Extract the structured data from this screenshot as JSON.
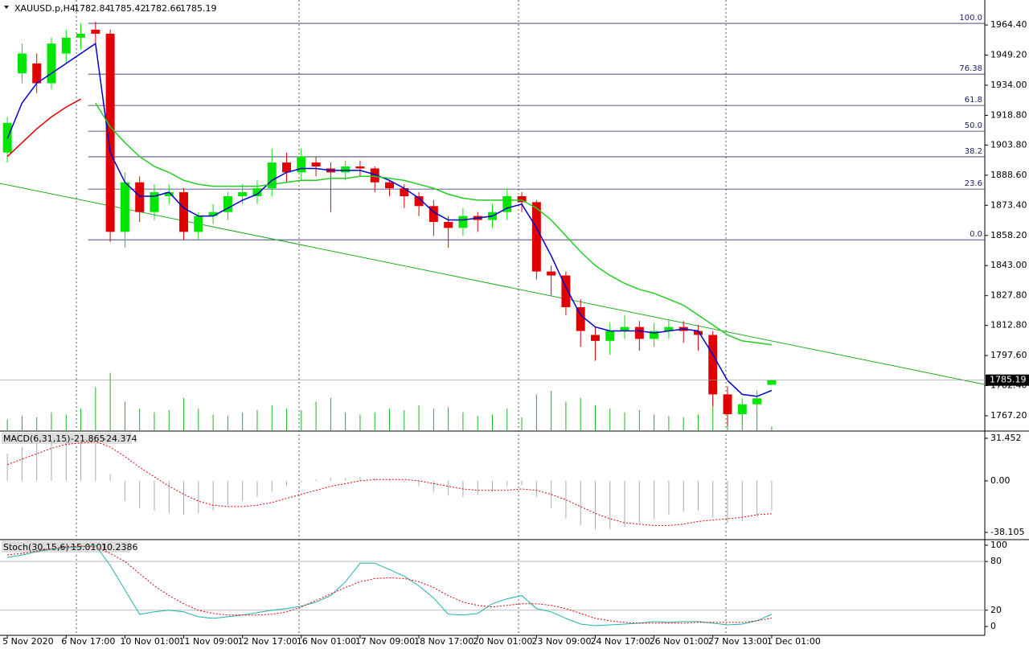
{
  "chart_data": {
    "type": "candlestick",
    "symbol": "XAUUSD.p,H4",
    "xlim": [
      -0.5,
      66.5
    ],
    "xticks": [
      {
        "value": 0,
        "label": "5 Nov 2020"
      },
      {
        "value": 4,
        "label": "6 Nov 17:00"
      },
      {
        "value": 8,
        "label": "10 Nov 01:00"
      },
      {
        "value": 12,
        "label": "11 Nov 09:00"
      },
      {
        "value": 16,
        "label": "12 Nov 17:00"
      },
      {
        "value": 20,
        "label": "16 Nov 01:00"
      },
      {
        "value": 24,
        "label": "17 Nov 09:00"
      },
      {
        "value": 28,
        "label": "18 Nov 17:00"
      },
      {
        "value": 32,
        "label": "20 Nov 01:00"
      },
      {
        "value": 36,
        "label": "23 Nov 09:00"
      },
      {
        "value": 40,
        "label": "24 Nov 17:00"
      },
      {
        "value": 44,
        "label": "26 Nov 01:00"
      },
      {
        "value": 48,
        "label": "27 Nov 13:00"
      },
      {
        "value": 52,
        "label": "1 Dec 01:00"
      }
    ],
    "ylim": [
      1759.9,
      1977.0
    ],
    "yticks": [
      {
        "value": 1964.4,
        "label": "1964.40"
      },
      {
        "value": 1949.2,
        "label": "1949.20"
      },
      {
        "value": 1934.0,
        "label": "1934.00"
      },
      {
        "value": 1918.8,
        "label": "1918.80"
      },
      {
        "value": 1903.8,
        "label": "1903.80"
      },
      {
        "value": 1888.6,
        "label": "1888.60"
      },
      {
        "value": 1873.4,
        "label": "1873.40"
      },
      {
        "value": 1858.2,
        "label": "1858.20"
      },
      {
        "value": 1843.0,
        "label": "1843.00"
      },
      {
        "value": 1827.8,
        "label": "1827.80"
      },
      {
        "value": 1812.8,
        "label": "1812.80"
      },
      {
        "value": 1797.6,
        "label": "1797.60"
      },
      {
        "value": 1782.4,
        "label": "1782.40"
      },
      {
        "value": 1767.2,
        "label": "1767.20"
      }
    ],
    "up_color": "#00e600",
    "down_color": "#e00000",
    "open": [
      1900,
      1940,
      1945,
      1935,
      1950,
      1958,
      1962,
      1960,
      1860,
      1885,
      1870,
      1878,
      1880,
      1860,
      1868,
      1870,
      1878,
      1878,
      1882,
      1895,
      1890,
      1895,
      1892,
      1890,
      1893,
      1892,
      1885,
      1882,
      1878,
      1873,
      1865,
      1862,
      1868,
      1866,
      1870,
      1878,
      1875,
      1840,
      1838,
      1822,
      1808,
      1805,
      1810,
      1812,
      1806,
      1810,
      1812,
      1810,
      1808,
      1778,
      1768,
      1773,
      1782.84
    ],
    "high": [
      1918,
      1955,
      1950,
      1958,
      1962,
      1965,
      1966,
      1962,
      1890,
      1888,
      1884,
      1884,
      1882,
      1870,
      1874,
      1880,
      1884,
      1886,
      1902,
      1900,
      1902,
      1898,
      1895,
      1896,
      1896,
      1893,
      1886,
      1884,
      1880,
      1876,
      1868,
      1872,
      1870,
      1874,
      1882,
      1880,
      1876,
      1843,
      1840,
      1826,
      1812,
      1814,
      1818,
      1815,
      1814,
      1816,
      1815,
      1813,
      1810,
      1782,
      1776,
      1780,
      1785.42
    ],
    "low": [
      1895,
      1935,
      1930,
      1932,
      1945,
      1952,
      1955,
      1855,
      1852,
      1865,
      1866,
      1874,
      1856,
      1856,
      1864,
      1866,
      1874,
      1874,
      1878,
      1885,
      1886,
      1888,
      1870,
      1886,
      1888,
      1880,
      1878,
      1872,
      1868,
      1858,
      1852,
      1858,
      1860,
      1862,
      1866,
      1870,
      1836,
      1828,
      1818,
      1802,
      1795,
      1798,
      1806,
      1800,
      1802,
      1806,
      1804,
      1800,
      1772,
      1762,
      1764,
      1766,
      1782.66
    ],
    "close": [
      1915,
      1950,
      1935,
      1955,
      1958,
      1960,
      1960,
      1860,
      1885,
      1870,
      1880,
      1880,
      1860,
      1868,
      1870,
      1878,
      1880,
      1882,
      1895,
      1890,
      1898,
      1893,
      1890,
      1893,
      1892,
      1885,
      1882,
      1878,
      1873,
      1865,
      1862,
      1868,
      1866,
      1870,
      1878,
      1875,
      1840,
      1838,
      1822,
      1810,
      1805,
      1810,
      1812,
      1806,
      1810,
      1812,
      1810,
      1808,
      1778,
      1768,
      1773,
      1776,
      1785.19
    ],
    "volume_ylim": [
      0,
      600
    ],
    "volume": [
      15,
      20,
      18,
      25,
      22,
      30,
      60,
      80,
      40,
      30,
      25,
      28,
      45,
      30,
      22,
      20,
      25,
      28,
      35,
      30,
      28,
      40,
      45,
      25,
      22,
      25,
      30,
      28,
      35,
      30,
      32,
      25,
      20,
      22,
      30,
      18,
      50,
      55,
      40,
      45,
      35,
      30,
      25,
      28,
      22,
      20,
      18,
      22,
      50,
      45,
      30,
      25,
      5
    ],
    "series": [
      {
        "color": "#0000c8",
        "values": [
          1907,
          1925,
          1935,
          1940,
          1945,
          1950,
          1955,
          1900,
          1885,
          1878,
          1878,
          1880,
          1872,
          1868,
          1868,
          1872,
          1876,
          1879,
          1886,
          1890,
          1892,
          1892,
          1891,
          1891,
          1891,
          1889,
          1886,
          1882,
          1877,
          1870,
          1866,
          1866,
          1867,
          1868,
          1872,
          1874,
          1862,
          1848,
          1832,
          1818,
          1812,
          1810,
          1810,
          1810,
          1809,
          1810,
          1811,
          1810,
          1798,
          1785,
          1778,
          1777,
          1780
        ]
      },
      {
        "color": "#e00000",
        "values": [
          1898,
          1905,
          1912,
          1918,
          1923,
          1927,
          null,
          null,
          null,
          null,
          null,
          null,
          null,
          null,
          null,
          null,
          null,
          null,
          null,
          null,
          null,
          null,
          null,
          null,
          null,
          null,
          null,
          null,
          null,
          null,
          null,
          null,
          null,
          null,
          null,
          null,
          null,
          null,
          null,
          null,
          null,
          null,
          null,
          null,
          null,
          null,
          null,
          null,
          null,
          null,
          null,
          null,
          null
        ]
      },
      {
        "color": "#22cc22",
        "values": [
          null,
          null,
          null,
          null,
          null,
          null,
          1925,
          1913,
          1905,
          1898,
          1893,
          1890,
          1886,
          1884,
          1883,
          1883,
          1883,
          1883,
          1884,
          1885,
          1886,
          1886,
          1887,
          1887,
          1888,
          1888,
          1887,
          1886,
          1884,
          1882,
          1879,
          1877,
          1876,
          1876,
          1876,
          1876,
          1872,
          1866,
          1858,
          1850,
          1843,
          1838,
          1834,
          1831,
          1829,
          1826,
          1823,
          1818,
          1813,
          1808,
          1805,
          1804,
          1803
        ]
      }
    ],
    "trendline": {
      "color": "#22aa22",
      "from": 1884.5,
      "to": 1783.0
    },
    "fib_levels": [
      {
        "label": "100.0",
        "price": 1965.2
      },
      {
        "label": "76.38",
        "price": 1939.6
      },
      {
        "label": "61.8",
        "price": 1923.8
      },
      {
        "label": "50.0",
        "price": 1910.8
      },
      {
        "label": "38.2",
        "price": 1897.9
      },
      {
        "label": "23.6",
        "price": 1881.6
      },
      {
        "label": "0.0",
        "price": 1856.0
      }
    ],
    "macd": {
      "title": "MACD(6,31,15)",
      "ylim": [
        -42.86,
        36.21
      ],
      "yticks": [
        31.452,
        {
          "value": 0,
          "label": "0.00"
        },
        -38.105
      ],
      "histogram": [
        20,
        25,
        28,
        30,
        31,
        30,
        28,
        5,
        -15,
        -20,
        -22,
        -24,
        -25,
        -24,
        -22,
        -18,
        -15,
        -12,
        -8,
        -4,
        -1,
        1,
        2,
        2,
        3,
        2,
        1,
        -1,
        -4,
        -8,
        -11,
        -12,
        -10,
        -8,
        -4,
        -3,
        -12,
        -20,
        -28,
        -33,
        -36,
        -36,
        -34,
        -31,
        -28,
        -25,
        -23,
        -22,
        -27,
        -31,
        -30,
        -26,
        -21.865
      ],
      "signal": [
        12,
        16,
        20,
        24,
        27,
        28,
        29,
        25,
        18,
        10,
        3,
        -4,
        -10,
        -15,
        -18,
        -19,
        -19,
        -18,
        -16,
        -13,
        -10,
        -7,
        -4,
        -2,
        0,
        1,
        1,
        1,
        0,
        -2,
        -4,
        -6,
        -7,
        -7,
        -7,
        -6,
        -7,
        -10,
        -14,
        -19,
        -24,
        -28,
        -31,
        -32,
        -33,
        -33,
        -32,
        -30,
        -29,
        -28,
        -27,
        -25,
        -24.374
      ]
    },
    "stoch": {
      "title": "Stoch(30,15,6)",
      "ylim": [
        -10.9,
        105.9
      ],
      "yticks": [
        100,
        80,
        20,
        0
      ],
      "main": [
        85,
        88,
        92,
        95,
        97,
        98,
        100,
        75,
        45,
        15,
        18,
        20,
        18,
        12,
        10,
        12,
        14,
        17,
        20,
        22,
        25,
        30,
        38,
        55,
        78,
        78,
        70,
        62,
        50,
        35,
        15,
        14,
        16,
        28,
        34,
        38,
        22,
        18,
        10,
        3,
        1,
        2,
        3,
        4,
        6,
        5,
        6,
        6,
        4,
        2,
        3,
        7,
        15.0101
      ],
      "signal": [
        88,
        90,
        93,
        96,
        98,
        99,
        98,
        90,
        80,
        65,
        50,
        38,
        28,
        20,
        16,
        14,
        14,
        14,
        15,
        18,
        24,
        32,
        40,
        48,
        55,
        59,
        60,
        59,
        55,
        48,
        38,
        30,
        26,
        24,
        26,
        28,
        28,
        26,
        22,
        16,
        10,
        7,
        5,
        4,
        4,
        4,
        4,
        5,
        5,
        5,
        5,
        7,
        10.2386
      ]
    }
  }
}
